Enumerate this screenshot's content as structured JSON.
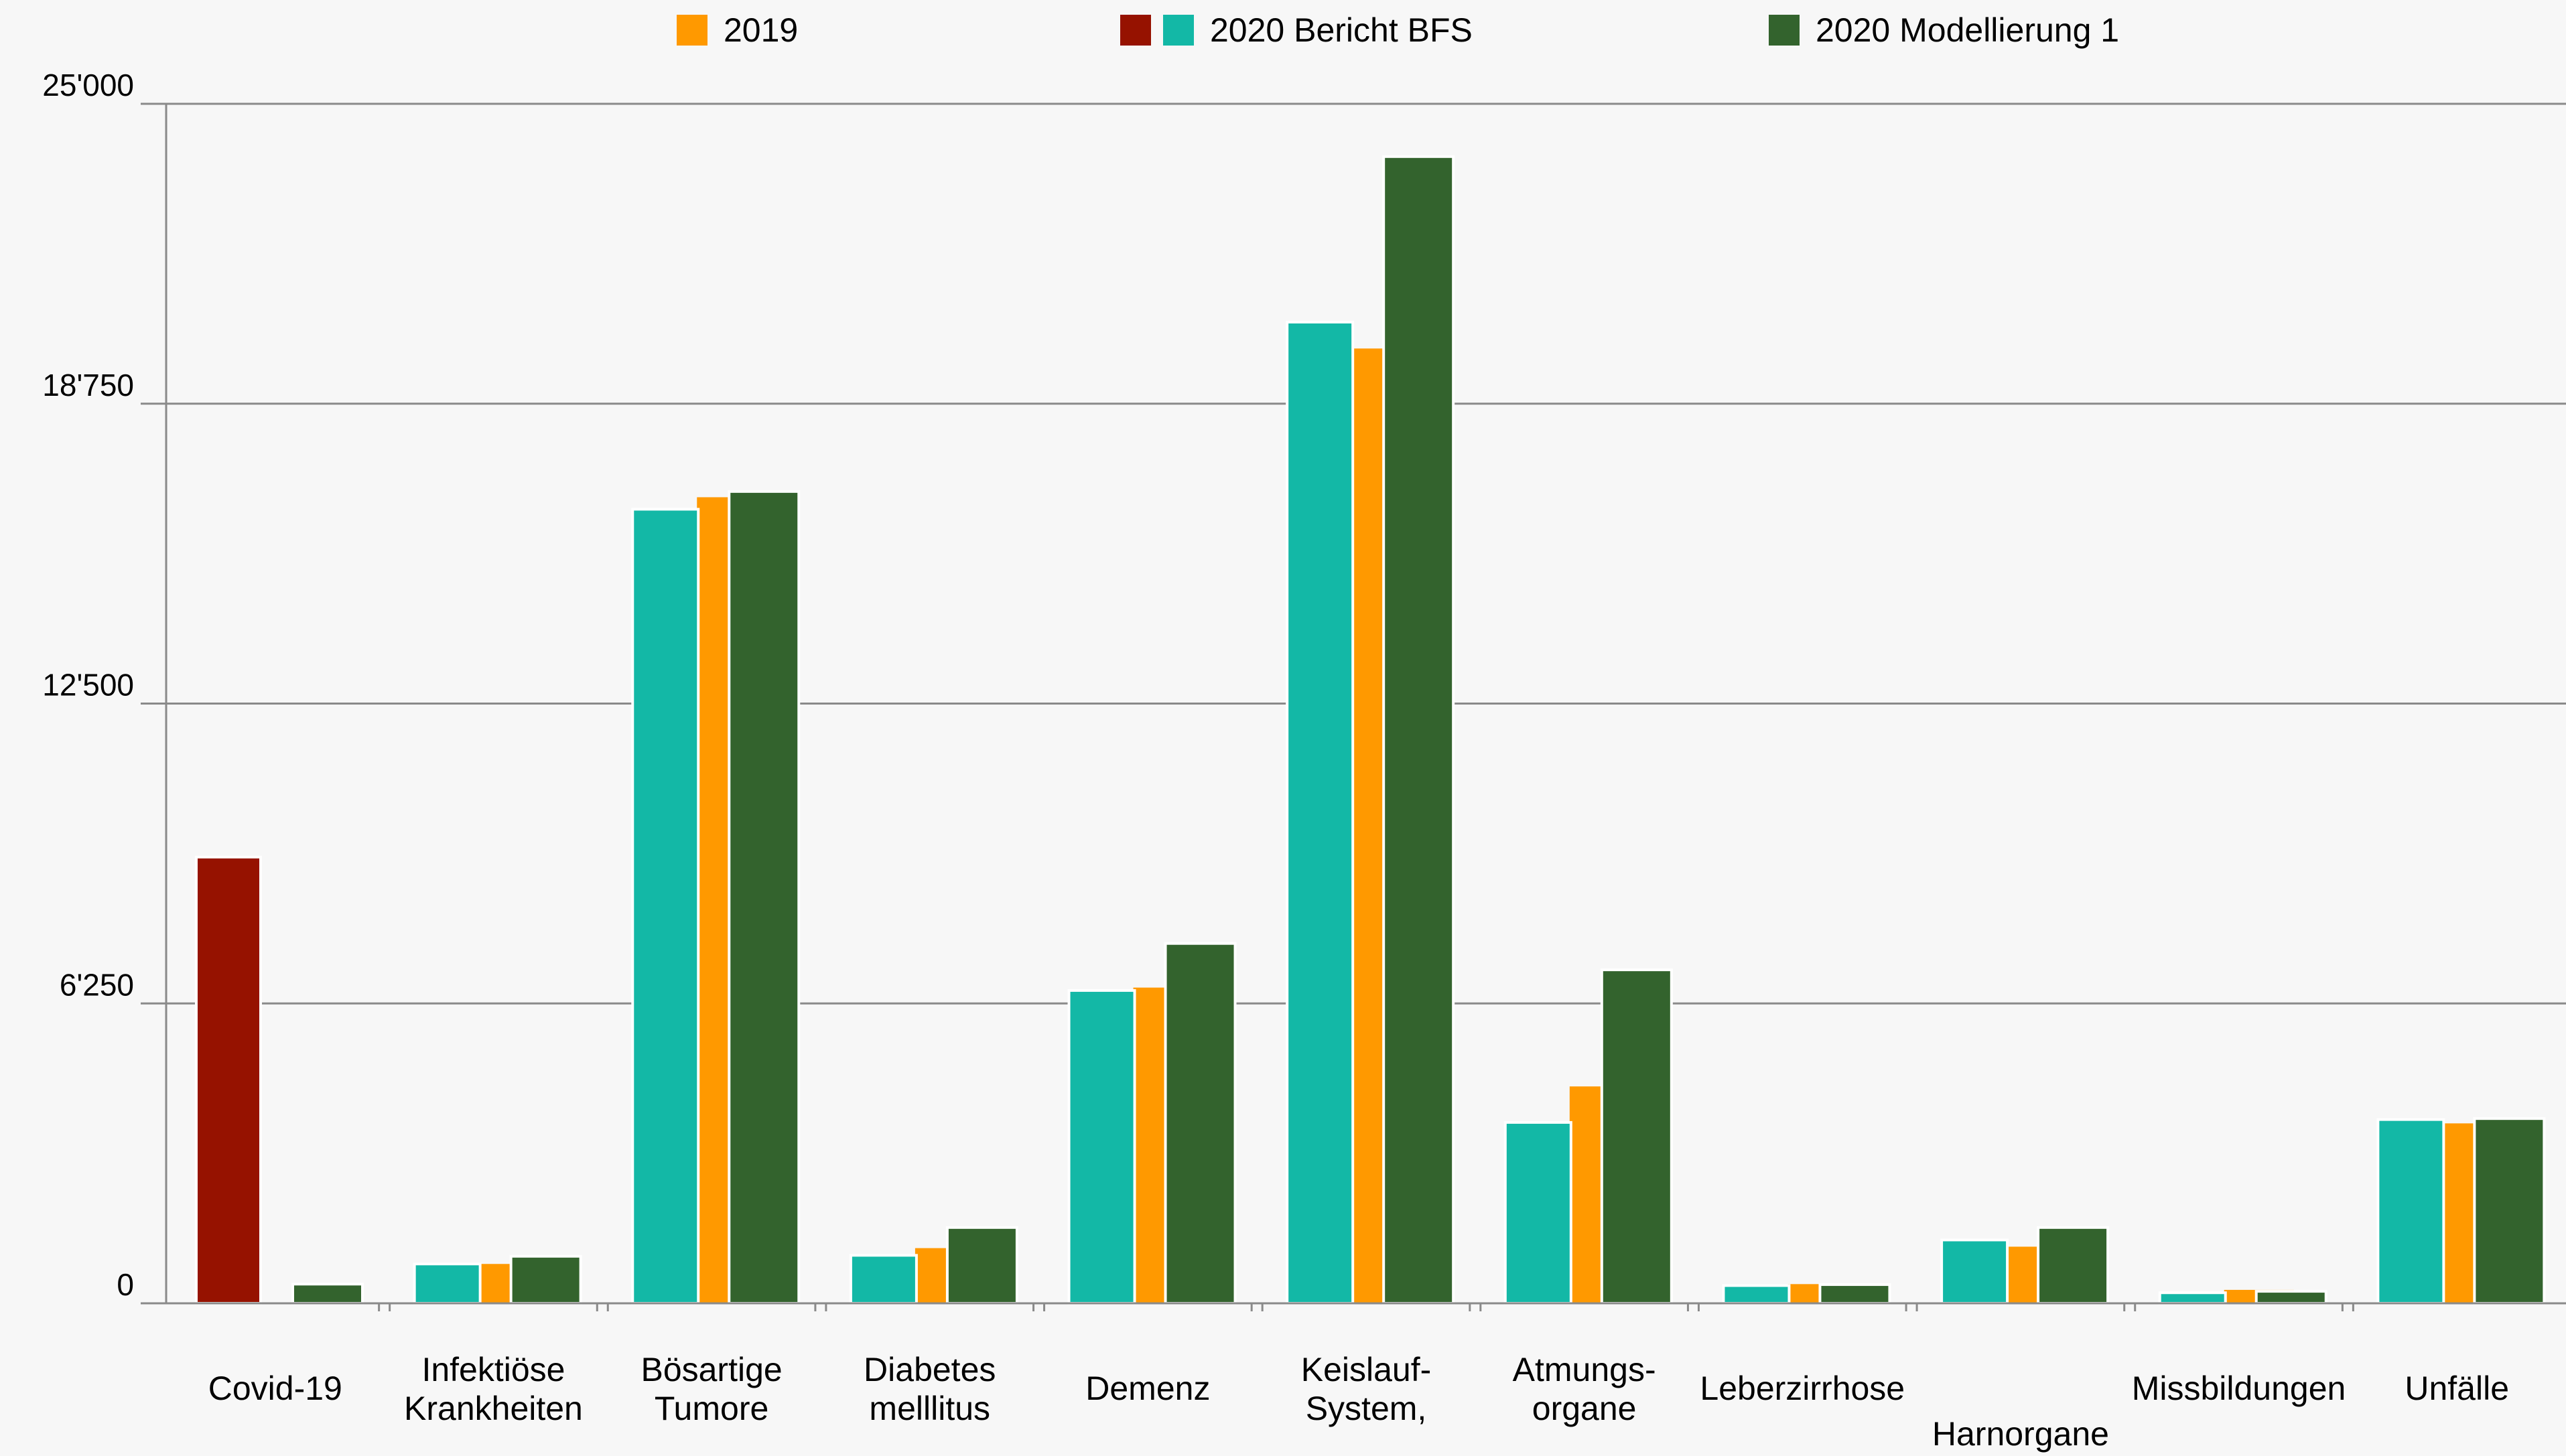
{
  "chart_data": {
    "type": "bar",
    "title": "",
    "xlabel": "",
    "ylabel": "",
    "ylim": [
      0,
      25000
    ],
    "yticks": [
      0,
      6250,
      12500,
      18750,
      25000
    ],
    "ytick_labels": [
      "0",
      "6'250",
      "12'500",
      "18'750",
      "25'000"
    ],
    "grid": true,
    "legend_position": "top",
    "legend": [
      {
        "label": "2019",
        "colors": [
          "#ff9900"
        ]
      },
      {
        "label": "2020 Bericht BFS",
        "colors": [
          "#961200",
          "#13b8a6"
        ]
      },
      {
        "label": "2020 Modellierung 1",
        "colors": [
          "#33632d"
        ]
      }
    ],
    "categories": [
      [
        "Covid-19"
      ],
      [
        "Infektiöse",
        "Krankheiten"
      ],
      [
        "Bösartige",
        "Tumore"
      ],
      [
        "Diabetes",
        "melllitus"
      ],
      [
        "Demenz"
      ],
      [
        "Keislauf-",
        "System,"
      ],
      [
        "Atmungs-",
        "organe"
      ],
      [
        "Leberzirrhose"
      ],
      [
        "Harnorgane"
      ],
      [
        "Missbildungen"
      ],
      [
        "Unfälle"
      ]
    ],
    "series": [
      {
        "name": "2019",
        "color": "#ff9900",
        "values": [
          0,
          820,
          16800,
          1150,
          6580,
          19900,
          4520,
          400,
          1180,
          280,
          3750
        ]
      },
      {
        "name": "2020 Bericht BFS",
        "color": "#13b8a6",
        "covid_color": "#961200",
        "values": [
          9300,
          820,
          16550,
          1000,
          6520,
          20450,
          3770,
          370,
          1320,
          220,
          3830
        ]
      },
      {
        "name": "2020 Modellierung 1",
        "color": "#33632d",
        "values": [
          400,
          980,
          16920,
          1580,
          7500,
          23900,
          6950,
          390,
          1580,
          250,
          3850
        ]
      }
    ]
  }
}
